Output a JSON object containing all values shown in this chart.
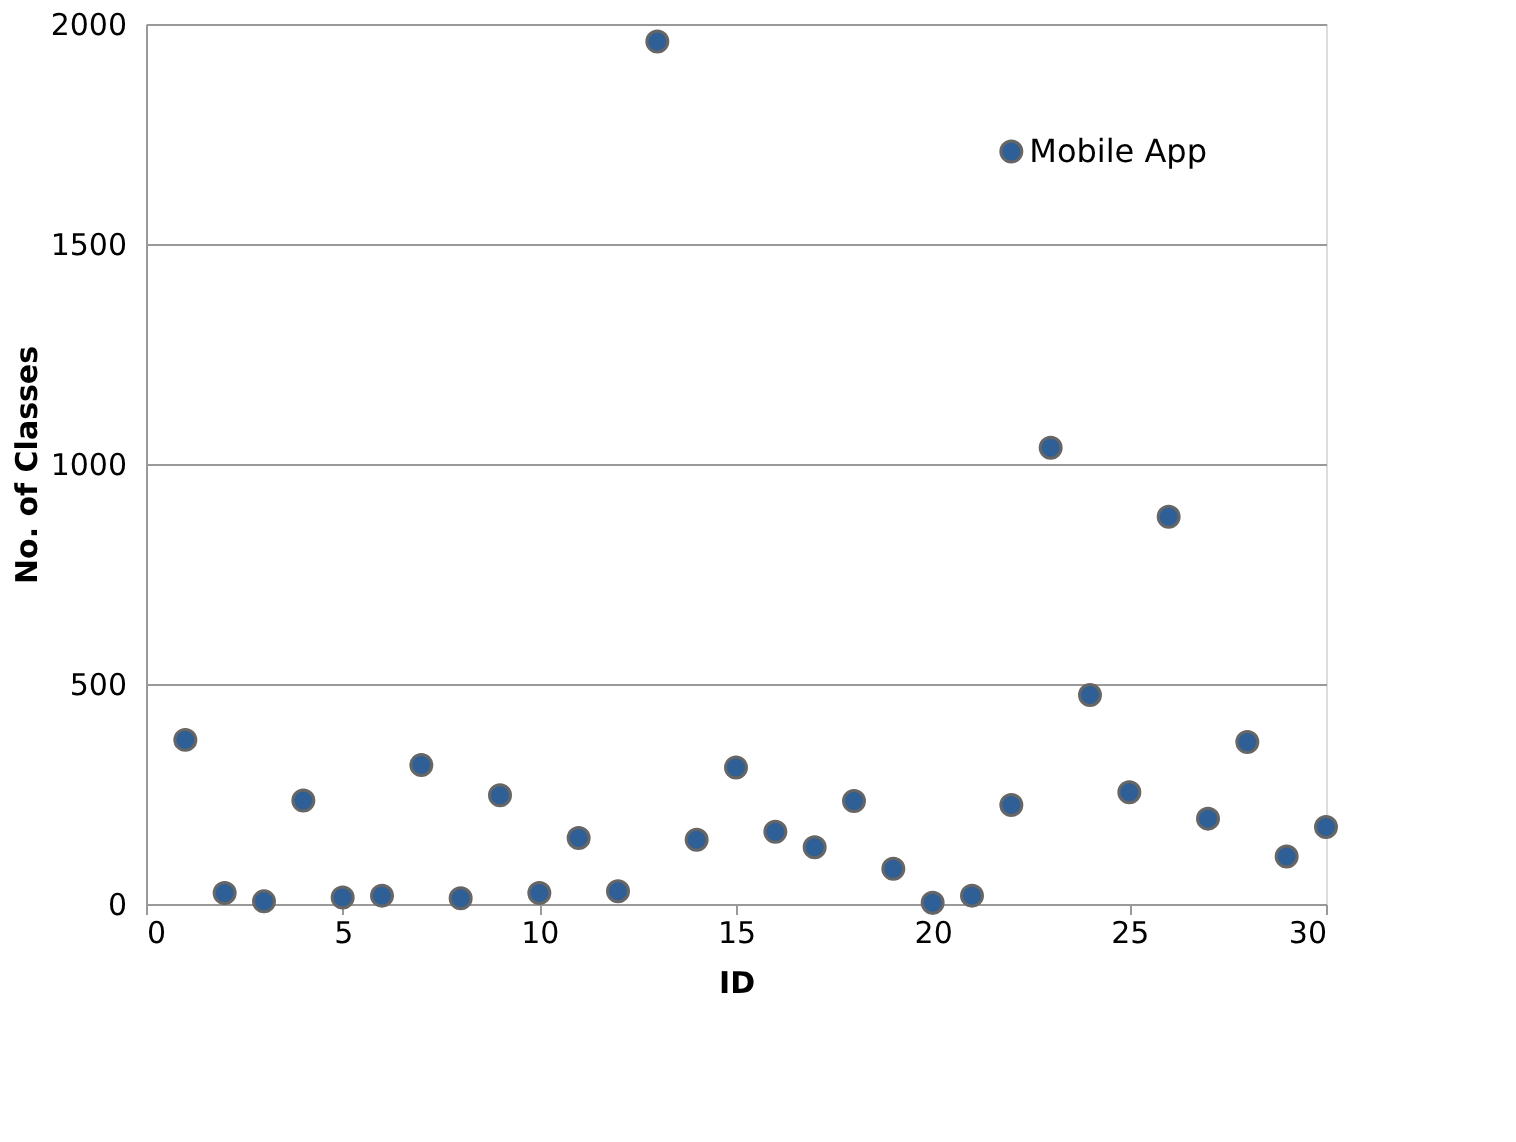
{
  "chart_data": {
    "type": "scatter",
    "xlabel": "ID",
    "ylabel": "No. of Classes",
    "x": [
      1,
      2,
      3,
      4,
      5,
      6,
      7,
      8,
      9,
      10,
      11,
      12,
      13,
      14,
      15,
      16,
      17,
      18,
      19,
      20,
      21,
      22,
      22,
      23,
      24,
      25,
      26,
      27,
      28,
      29,
      30
    ],
    "series": [
      {
        "color": "#2e5f96",
        "values": [
          373,
          25,
          6,
          235,
          15,
          19,
          316,
          13,
          247,
          25,
          150,
          29,
          1960,
          146,
          310,
          164,
          129,
          234,
          80,
          3,
          19,
          225,
          1710,
          1037,
          475,
          254,
          880,
          194,
          368,
          108,
          175
        ]
      }
    ],
    "annotations": [
      {
        "text": "Mobile App",
        "x": 22,
        "y": 1710
      }
    ],
    "xlim": [
      0,
      30
    ],
    "xticks": [
      0,
      5,
      10,
      15,
      20,
      25,
      30
    ],
    "ylim": [
      0,
      2000
    ],
    "yticks": [
      0,
      500,
      1000,
      1500,
      2000
    ],
    "grid": "y",
    "marker": "circle"
  }
}
